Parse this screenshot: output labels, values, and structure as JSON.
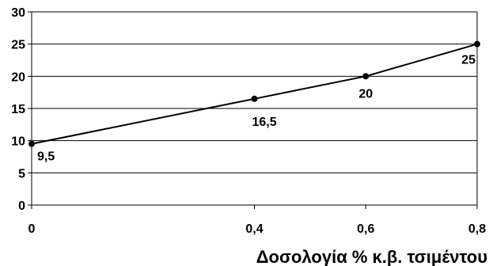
{
  "chart_data": {
    "type": "line",
    "title": "",
    "xlabel": "Δοσολογία % κ.β. τσιμέντου",
    "ylabel": "",
    "x": [
      0,
      0.4,
      0.6,
      0.8
    ],
    "values": [
      9.5,
      16.5,
      20,
      25
    ],
    "data_labels": [
      "9,5",
      "16,5",
      "20",
      "25"
    ],
    "xlim": [
      0,
      0.8
    ],
    "ylim": [
      0,
      30
    ],
    "x_ticks": [
      0,
      0.4,
      0.6,
      0.8
    ],
    "x_tick_labels": [
      "0",
      "0,4",
      "0,6",
      "0,8"
    ],
    "y_ticks": [
      0,
      5,
      10,
      15,
      20,
      25,
      30
    ],
    "y_tick_labels": [
      "0",
      "5",
      "10",
      "15",
      "20",
      "25",
      "30"
    ],
    "grid": "horizontal",
    "line_color": "#000000",
    "marker_color": "#000000"
  }
}
